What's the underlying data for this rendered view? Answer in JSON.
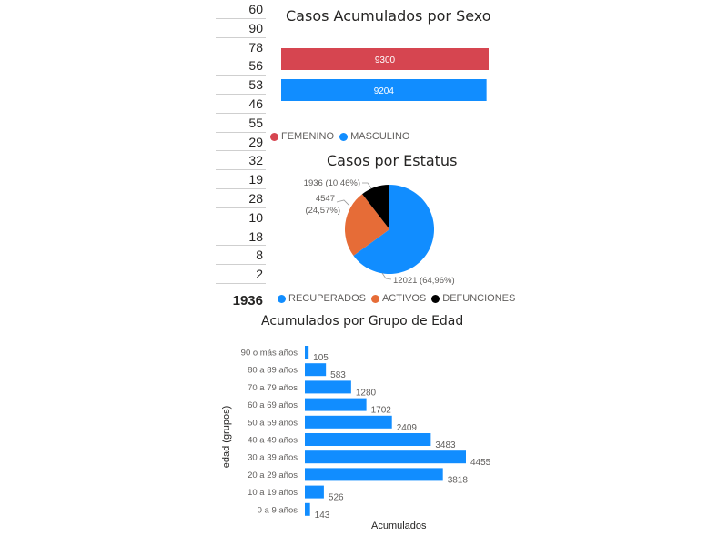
{
  "counts_table": {
    "values": [
      "60",
      "90",
      "78",
      "56",
      "53",
      "46",
      "55",
      "29",
      "32",
      "19",
      "28",
      "10",
      "18",
      "8",
      "2"
    ],
    "total": "1936"
  },
  "chart_data": [
    {
      "type": "bar",
      "orientation": "horizontal",
      "title": "Casos Acumulados por Sexo",
      "categories": [
        "FEMENINO",
        "MASCULINO"
      ],
      "values": [
        9300,
        9204
      ],
      "colors": [
        "#d64550",
        "#118dff"
      ],
      "legend": "bottom-left",
      "grid": false
    },
    {
      "type": "pie",
      "title": "Casos por Estatus",
      "categories": [
        "RECUPERADOS",
        "ACTIVOS",
        "DEFUNCIONES"
      ],
      "values": [
        12021,
        4547,
        1936
      ],
      "labels": [
        "12021 (64,96%)",
        "4547 (24,57%)",
        "1936 (10,46%)"
      ],
      "colors": [
        "#118dff",
        "#e66c37",
        "#000000"
      ],
      "legend": "bottom"
    },
    {
      "type": "bar",
      "orientation": "horizontal",
      "title": "Acumulados por Grupo de Edad",
      "categories": [
        "90 o más años",
        "80 a 89 años",
        "70 a 79 años",
        "60 a 69 años",
        "50 a 59 años",
        "40 a 49 años",
        "30 a 39 años",
        "20 a 29 años",
        "10 a 19 años",
        "0 a 9 años"
      ],
      "values": [
        105,
        583,
        1280,
        1702,
        2409,
        3483,
        4455,
        3818,
        526,
        143
      ],
      "xlabel": "Acumulados",
      "ylabel": "edad (grupos)",
      "color": "#118dff",
      "grid": false
    }
  ]
}
